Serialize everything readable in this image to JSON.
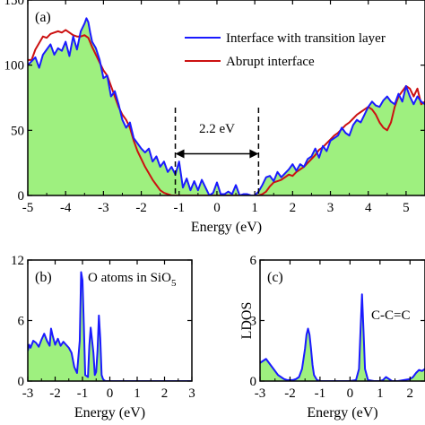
{
  "chart_data": [
    {
      "type": "area",
      "panel_label": "(a)",
      "xlabel": "Energy (eV)",
      "ylabel": "",
      "xlim": [
        -5,
        5.5
      ],
      "ylim": [
        0,
        150
      ],
      "x_ticks": [
        "-5",
        "-4",
        "-3",
        "-2",
        "-1",
        "0",
        "1",
        "2",
        "3",
        "4",
        "5"
      ],
      "y_ticks": [
        "0",
        "50",
        "100",
        "150"
      ],
      "legend": {
        "placement": "top-right"
      },
      "series": [
        {
          "name": "Interface with transition layer",
          "color": "#1a1aff",
          "fill": "#9ef07f",
          "x": [
            -5,
            -4.9,
            -4.8,
            -4.7,
            -4.6,
            -4.5,
            -4.4,
            -4.3,
            -4.2,
            -4.1,
            -4.0,
            -3.9,
            -3.8,
            -3.7,
            -3.6,
            -3.5,
            -3.45,
            -3.4,
            -3.35,
            -3.3,
            -3.2,
            -3.1,
            -3.0,
            -2.9,
            -2.8,
            -2.7,
            -2.6,
            -2.5,
            -2.4,
            -2.3,
            -2.2,
            -2.1,
            -2.0,
            -1.9,
            -1.8,
            -1.7,
            -1.6,
            -1.5,
            -1.4,
            -1.3,
            -1.2,
            -1.1,
            -1.0,
            -0.9,
            -0.8,
            -0.7,
            -0.6,
            -0.5,
            -0.4,
            -0.3,
            -0.2,
            -0.1,
            0.0,
            0.1,
            0.2,
            0.3,
            0.4,
            0.5,
            0.6,
            0.7,
            0.8,
            0.9,
            1.0,
            1.1,
            1.2,
            1.3,
            1.4,
            1.5,
            1.6,
            1.7,
            1.8,
            1.9,
            2.0,
            2.1,
            2.2,
            2.3,
            2.4,
            2.5,
            2.6,
            2.7,
            2.8,
            2.9,
            3.0,
            3.1,
            3.2,
            3.3,
            3.4,
            3.5,
            3.6,
            3.7,
            3.8,
            3.9,
            4.0,
            4.1,
            4.2,
            4.3,
            4.4,
            4.5,
            4.6,
            4.7,
            4.8,
            4.9,
            5.0,
            5.1,
            5.2,
            5.3,
            5.4,
            5.5
          ],
          "y": [
            100,
            103,
            106,
            98,
            108,
            112,
            116,
            108,
            113,
            111,
            118,
            107,
            122,
            112,
            126,
            132,
            136,
            133,
            125,
            118,
            113,
            104,
            90,
            92,
            76,
            80,
            70,
            58,
            52,
            56,
            44,
            40,
            36,
            33,
            36,
            26,
            30,
            22,
            26,
            18,
            22,
            16,
            26,
            6,
            13,
            4,
            11,
            4,
            12,
            6,
            0,
            2,
            10,
            1,
            1,
            3,
            1,
            8,
            0,
            1,
            1,
            0,
            0,
            3,
            8,
            14,
            15,
            11,
            18,
            14,
            17,
            20,
            24,
            19,
            24,
            22,
            28,
            30,
            36,
            29,
            38,
            34,
            42,
            44,
            46,
            52,
            48,
            46,
            54,
            58,
            56,
            62,
            68,
            72,
            69,
            68,
            73,
            76,
            72,
            70,
            78,
            72,
            84,
            76,
            70,
            76,
            72,
            70
          ]
        },
        {
          "name": "Abrupt interface",
          "color": "#cc1111",
          "x": [
            -5,
            -4.9,
            -4.8,
            -4.7,
            -4.6,
            -4.5,
            -4.4,
            -4.3,
            -4.2,
            -4.1,
            -4.0,
            -3.9,
            -3.8,
            -3.7,
            -3.6,
            -3.5,
            -3.4,
            -3.3,
            -3.2,
            -3.1,
            -3.0,
            -2.9,
            -2.8,
            -2.7,
            -2.6,
            -2.5,
            -2.4,
            -2.3,
            -2.2,
            -2.1,
            -2.0,
            -1.9,
            -1.8,
            -1.7,
            -1.6,
            -1.5,
            -1.4,
            -1.3,
            -1.2,
            -1.1,
            -1.0,
            -0.9,
            -0.5,
            0.0,
            0.5,
            0.9,
            1.0,
            1.1,
            1.2,
            1.3,
            1.4,
            1.5,
            1.6,
            1.7,
            1.8,
            1.9,
            2.0,
            2.1,
            2.2,
            2.3,
            2.4,
            2.5,
            2.6,
            2.7,
            2.8,
            2.9,
            3.0,
            3.1,
            3.2,
            3.3,
            3.4,
            3.5,
            3.6,
            3.7,
            3.8,
            3.9,
            4.0,
            4.1,
            4.2,
            4.3,
            4.4,
            4.5,
            4.6,
            4.7,
            4.8,
            4.9,
            5.0,
            5.1,
            5.2,
            5.3,
            5.4,
            5.5
          ],
          "y": [
            104,
            104,
            112,
            117,
            122,
            121,
            124,
            125,
            126,
            125,
            127,
            125,
            123,
            122,
            122,
            123,
            121,
            114,
            108,
            102,
            96,
            92,
            84,
            76,
            68,
            62,
            58,
            52,
            42,
            34,
            28,
            22,
            17,
            12,
            8,
            4,
            2,
            1,
            0,
            0,
            0,
            0,
            0,
            0,
            0,
            0,
            0,
            0,
            1,
            3,
            7,
            10,
            11,
            12,
            14,
            16,
            15,
            18,
            20,
            22,
            25,
            28,
            31,
            35,
            37,
            40,
            43,
            46,
            48,
            51,
            54,
            56,
            59,
            62,
            64,
            66,
            68,
            66,
            62,
            56,
            52,
            50,
            56,
            68,
            76,
            80,
            84,
            82,
            76,
            82,
            70,
            72
          ]
        }
      ],
      "annotation": {
        "text": "2.2 eV",
        "x_from": -1.1,
        "x_to": 1.1,
        "y": 32
      }
    },
    {
      "type": "area",
      "panel_label": "(b)",
      "title": "O atoms in SiO",
      "title_subscript": "5",
      "xlabel": "Energy (eV)",
      "ylabel": "",
      "xlim": [
        -3,
        3
      ],
      "ylim": [
        0,
        12
      ],
      "x_ticks": [
        "-3",
        "-2",
        "-1",
        "0",
        "1",
        "2",
        "3"
      ],
      "y_ticks": [
        "0",
        "6",
        "12"
      ],
      "series": [
        {
          "color": "#1a1aff",
          "fill": "#9ef07f",
          "x": [
            -3.0,
            -2.95,
            -2.9,
            -2.8,
            -2.7,
            -2.6,
            -2.5,
            -2.4,
            -2.3,
            -2.2,
            -2.15,
            -2.1,
            -2.0,
            -1.9,
            -1.8,
            -1.7,
            -1.6,
            -1.5,
            -1.4,
            -1.3,
            -1.2,
            -1.1,
            -1.05,
            -1.0,
            -0.95,
            -0.9,
            -0.8,
            -0.75,
            -0.7,
            -0.6,
            -0.55,
            -0.5,
            -0.45,
            -0.4,
            -0.35,
            -0.3,
            -0.25,
            -0.2,
            -0.15,
            -0.1,
            0.0,
            0.5,
            1.0,
            2.0,
            3.0
          ],
          "y": [
            3.0,
            3.6,
            3.3,
            4.0,
            3.8,
            3.4,
            4.1,
            4.7,
            4.0,
            3.5,
            5.2,
            4.6,
            3.6,
            4.2,
            3.5,
            3.9,
            3.6,
            3.3,
            2.8,
            1.4,
            0.8,
            4.0,
            10.8,
            10.0,
            5.5,
            0.6,
            0.4,
            3.5,
            5.3,
            2.8,
            0.6,
            0.9,
            3.0,
            6.5,
            4.2,
            0.6,
            0.2,
            0.05,
            0.0,
            0.0,
            0.0,
            0.0,
            0.0,
            0.0,
            0.0
          ]
        }
      ]
    },
    {
      "type": "area",
      "panel_label": "(c)",
      "title": "C-C=C",
      "xlabel": "Energy (eV)",
      "ylabel": "LDOS",
      "xlim": [
        -3,
        2.5
      ],
      "ylim": [
        0,
        6
      ],
      "x_ticks": [
        "-3",
        "-2",
        "-1",
        "0",
        "1",
        "2"
      ],
      "y_ticks": [
        "0",
        "3",
        "6"
      ],
      "series": [
        {
          "color": "#1a1aff",
          "fill": "#9ef07f",
          "x": [
            -3.0,
            -2.9,
            -2.8,
            -2.7,
            -2.6,
            -2.5,
            -2.4,
            -2.3,
            -2.2,
            -2.1,
            -2.0,
            -1.9,
            -1.8,
            -1.7,
            -1.6,
            -1.5,
            -1.45,
            -1.4,
            -1.35,
            -1.3,
            -1.25,
            -1.2,
            -1.1,
            -1.0,
            -0.5,
            0.0,
            0.2,
            0.3,
            0.35,
            0.4,
            0.45,
            0.5,
            0.6,
            0.8,
            1.0,
            1.1,
            1.2,
            1.3,
            1.4,
            1.6,
            1.8,
            2.0,
            2.1,
            2.2,
            2.3,
            2.4,
            2.5
          ],
          "y": [
            0.9,
            1.0,
            1.1,
            0.9,
            0.7,
            0.5,
            0.3,
            0.2,
            0.1,
            0.05,
            0.05,
            0.05,
            0.1,
            0.2,
            0.6,
            1.6,
            2.3,
            2.6,
            2.3,
            1.6,
            0.8,
            0.3,
            0.05,
            0.0,
            0.0,
            0.0,
            0.05,
            0.6,
            2.5,
            4.3,
            2.5,
            0.6,
            0.05,
            0.0,
            0.0,
            0.05,
            0.2,
            0.1,
            0.0,
            0.0,
            0.05,
            0.1,
            0.2,
            0.4,
            0.55,
            0.5,
            0.6
          ]
        }
      ]
    }
  ]
}
